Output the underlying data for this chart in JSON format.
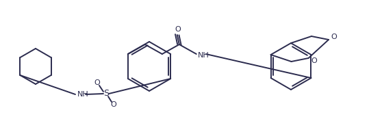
{
  "bg_color": "#ffffff",
  "line_color": "#2b2b4e",
  "lw": 1.4,
  "figsize": [
    5.58,
    1.93
  ],
  "dpi": 100,
  "xlim": [
    0,
    558
  ],
  "ylim": [
    0,
    193
  ]
}
